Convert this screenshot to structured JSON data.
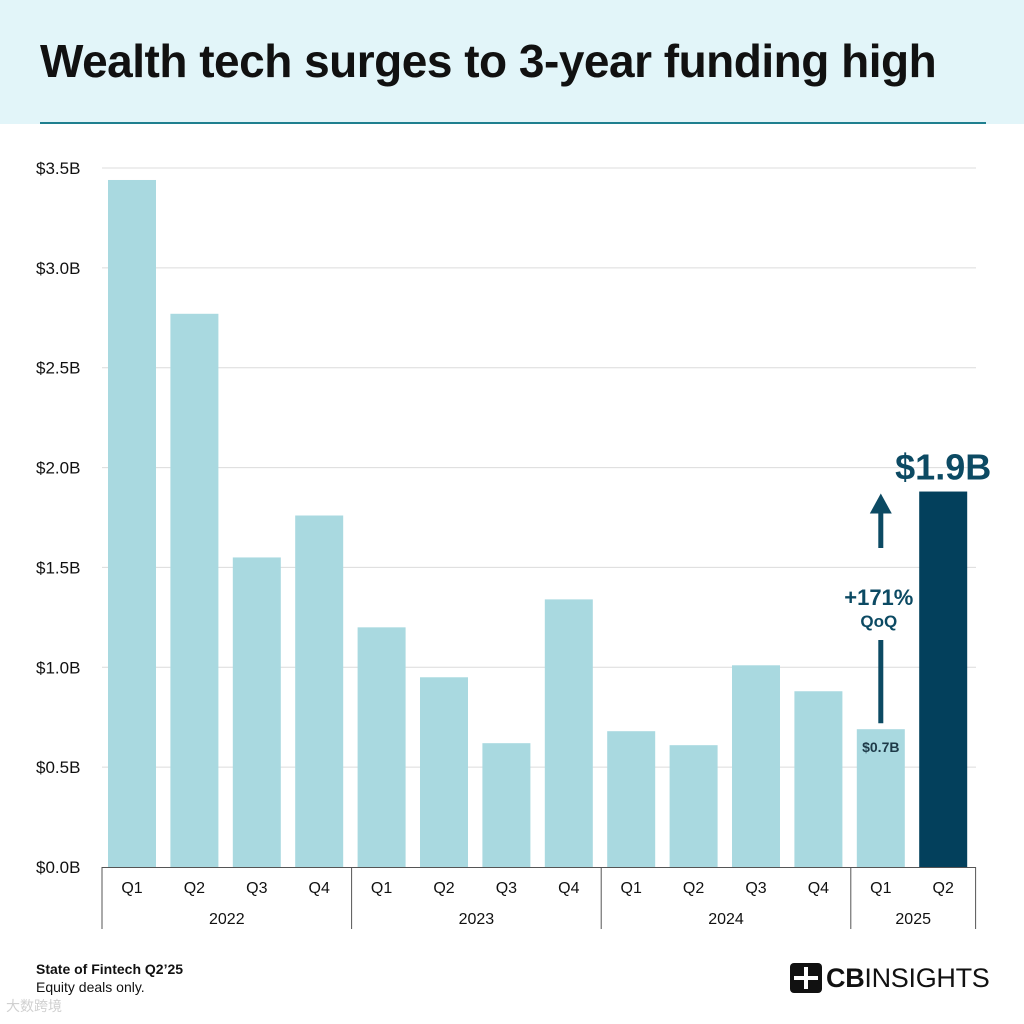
{
  "header": {
    "title": "Wealth tech surges to 3-year funding high"
  },
  "chart_data": {
    "type": "bar",
    "title": "Wealth tech surges to 3-year funding high",
    "xlabel": "",
    "ylabel": "",
    "ylim": [
      0,
      3.5
    ],
    "y_ticks": [
      "$0.0B",
      "$0.5B",
      "$1.0B",
      "$1.5B",
      "$2.0B",
      "$2.5B",
      "$3.0B",
      "$3.5B"
    ],
    "y_tick_values": [
      0,
      0.5,
      1.0,
      1.5,
      2.0,
      2.5,
      3.0,
      3.5
    ],
    "grid": true,
    "categories": [
      "Q1",
      "Q2",
      "Q3",
      "Q4",
      "Q1",
      "Q2",
      "Q3",
      "Q4",
      "Q1",
      "Q2",
      "Q3",
      "Q4",
      "Q1",
      "Q2"
    ],
    "values": [
      3.44,
      2.77,
      1.55,
      1.76,
      1.2,
      0.95,
      0.62,
      1.34,
      0.68,
      0.61,
      1.01,
      0.88,
      0.69,
      1.88
    ],
    "year_groups": [
      {
        "label": "2022",
        "count": 4
      },
      {
        "label": "2023",
        "count": 4
      },
      {
        "label": "2024",
        "count": 4
      },
      {
        "label": "2025",
        "count": 2
      }
    ],
    "highlight_index": 13,
    "highlight_label": "$1.9B",
    "prior_label": "$0.7B",
    "change_label": "+171%",
    "change_sublabel": "QoQ",
    "colors": {
      "bar": "#a9d9e0",
      "highlight": "#03405c",
      "annotation": "#0c4a63",
      "grid": "#dcdcdc",
      "axis": "#555555",
      "text": "#111111"
    }
  },
  "footer": {
    "source": "State of Fintech Q2’25",
    "note": "Equity deals only.",
    "logo_text_bold": "CB",
    "logo_text_rest": "INSIGHTS",
    "logo_icon": "cbinsights-logo-icon",
    "watermark": "大数跨境"
  }
}
